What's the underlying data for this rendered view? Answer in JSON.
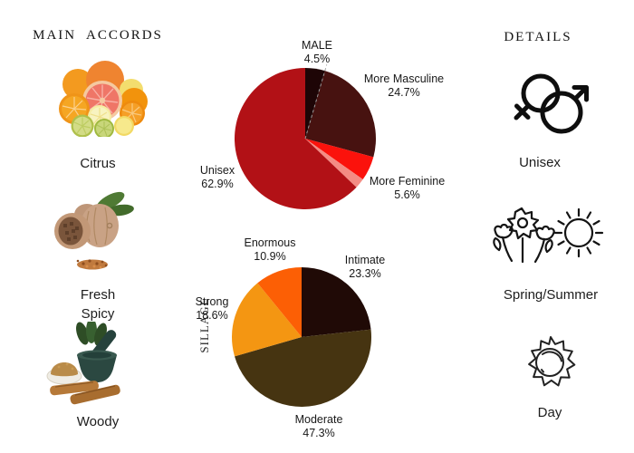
{
  "page": {
    "background": "#ffffff"
  },
  "left_panel": {
    "header": "MAIN ACCORDS",
    "items": [
      {
        "label": "Citrus",
        "image": "citrus-fruits-photo"
      },
      {
        "label": "Fresh\nSpicy",
        "image": "nutmeg-photo"
      },
      {
        "label": "Woody",
        "image": "mortar-pestle-sandalwood-photo"
      }
    ]
  },
  "right_panel": {
    "header": "DETAILS",
    "items": [
      {
        "label": "Unisex",
        "icon": "unisex-gender-icon"
      },
      {
        "label": "Spring/Summer",
        "icon": "flowers-and-sun-icon"
      },
      {
        "label": "Day",
        "icon": "day-sun-icon"
      }
    ]
  },
  "chart_data": [
    {
      "type": "pie",
      "name": "gender-votes",
      "direction": "clockwise",
      "start_angle": "12-o-clock",
      "dashed_leader_after_slice": 0,
      "slices": [
        {
          "category": "MALE",
          "value": 4.5,
          "pct_label": "4.5%",
          "color": "#1E0506",
          "label_visible": true
        },
        {
          "category": "More Masculine",
          "value": 24.7,
          "pct_label": "24.7%",
          "color": "#471210",
          "label_visible": true
        },
        {
          "category": "More Feminine",
          "value": 5.6,
          "pct_label": "5.6%",
          "color": "#FB120C",
          "label_visible": true
        },
        {
          "category": "",
          "value": 2.3,
          "pct_label": "",
          "color": "#F48C84",
          "label_visible": false
        },
        {
          "category": "Unisex",
          "value": 62.9,
          "pct_label": "62.9%",
          "color": "#B21116",
          "label_visible": true
        }
      ]
    },
    {
      "type": "pie",
      "name": "sillage-votes",
      "axis_label": "SILLAGE",
      "direction": "clockwise",
      "start_angle": "12-o-clock",
      "slices": [
        {
          "category": "Intimate",
          "value": 23.3,
          "pct_label": "23.3%",
          "color": "#200A06",
          "label_visible": true
        },
        {
          "category": "Moderate",
          "value": 47.3,
          "pct_label": "47.3%",
          "color": "#463411",
          "label_visible": true
        },
        {
          "category": "Strong",
          "value": 18.6,
          "pct_label": "18.6%",
          "color": "#F49612",
          "label_visible": true
        },
        {
          "category": "Enormous",
          "value": 10.9,
          "pct_label": "10.9%",
          "color": "#FC5F05",
          "label_visible": true
        }
      ]
    }
  ]
}
